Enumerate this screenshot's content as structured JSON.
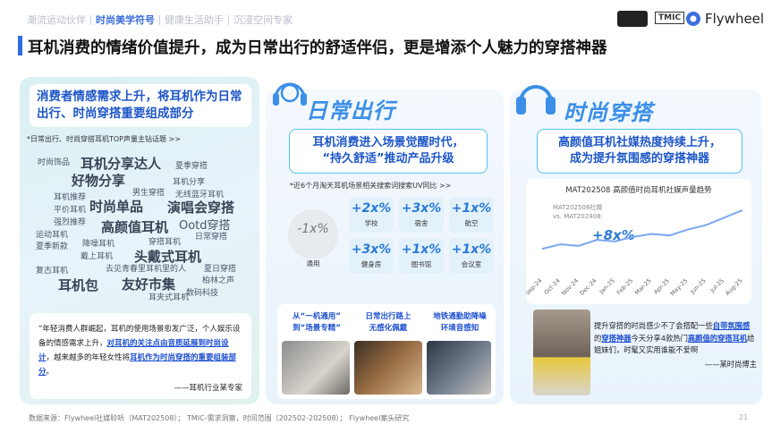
{
  "header": {
    "nav": [
      "潮流运动伙伴",
      "时尚美学符号",
      "健康生活助手",
      "沉浸空间专家"
    ],
    "active_nav": 1,
    "logos": [
      "TMIC",
      "Flywheel"
    ]
  },
  "title": "耳机消费的情绪价值提升，成为日常出行的舒适伴侣，更是增添个人魅力的穿搭神器",
  "left": {
    "heading": "消费者情感需求上升，将耳机作为日常出行、时尚穿搭重要组成部分",
    "note": "*日常出行、时尚穿搭耳机TOP声量主钻话题 >>",
    "words": [
      "时尚饰品",
      "耳机分享达人",
      "夏季穿搭",
      "好物分享",
      "耳机分享",
      "男生穿搭",
      "无线蓝牙耳机",
      "耳机推荐",
      "时尚单品",
      "演唱会穿搭",
      "平价耳机",
      "强烈推荐",
      "高颜值耳机",
      "Ootd穿搭",
      "运动耳机",
      "日常穿搭",
      "夏季新款",
      "降噪耳机",
      "穿搭耳机",
      "戴上耳机",
      "头戴式耳机",
      "复古耳机",
      "去见青春里耳机里的人",
      "夏日穿搭",
      "耳机包",
      "友好市集",
      "柏林之声",
      "耳夹式耳机",
      "数码科技"
    ],
    "quote": [
      {
        "text": "“年轻消费人群崛起，耳机的使用场景愈发广泛，个人娱乐设备的情感需求上升，",
        "highlight": false
      },
      {
        "text": "对耳机的关注点由音质延展到时尚设计",
        "highlight": true
      },
      {
        "text": "，越来越多的年轻女性将",
        "highlight": false
      },
      {
        "text": "耳机作为时尚穿搭的重要组装部分",
        "highlight": true
      },
      {
        "text": "。",
        "highlight": false
      }
    ],
    "quote_source": "——耳机行业某专家"
  },
  "middle": {
    "label": "日常出行",
    "callout": [
      "耳机消费进入场景觉醒时代，",
      "“持久舒适”推动产品升级"
    ],
    "note": "*近6个月淘天耳机场景相关搜索词搜索UV同比 >>",
    "overall": {
      "value": "-1x%",
      "label": "通用"
    },
    "scenes": [
      {
        "value": "+2x%",
        "label": "学校"
      },
      {
        "value": "+3x%",
        "label": "宿舍"
      },
      {
        "value": "+1x%",
        "label": "航空"
      },
      {
        "value": "+3x%",
        "label": "健身房"
      },
      {
        "value": "+1x%",
        "label": "图书馆"
      },
      {
        "value": "+1x%",
        "label": "会议室"
      }
    ],
    "features": [
      [
        "从“一机通用”",
        "到“场景专精”"
      ],
      [
        "日常出行路上",
        "无感化佩戴"
      ],
      [
        "地铁通勤助降噪",
        "环境音感知"
      ]
    ]
  },
  "chart_data": {
    "type": "line",
    "title": "MAT202508 高颜值时尚耳机社媒声量趋势",
    "annotation": [
      "MAT202508社媒",
      "vs. MAT202408:"
    ],
    "annotation_value": "+8x%",
    "categories": [
      "Sep-24",
      "Oct-24",
      "Nov-24",
      "Dec-24",
      "Jan-25",
      "Feb-25",
      "Mar-25",
      "Apr-25",
      "May-25",
      "Jun-25",
      "Jul-25",
      "Aug-25"
    ],
    "values": [
      18,
      21,
      20,
      24,
      23,
      26,
      28,
      27,
      31,
      34,
      39,
      44
    ],
    "ylim": [
      0,
      50
    ],
    "color": "#7aa7f0"
  },
  "right": {
    "label": "时尚穿搭",
    "callout": [
      "高颜值耳机社媒热度持续上升，",
      "成为提升氛围感的穿搭神器"
    ],
    "quote": [
      {
        "text": "提升穿搭的时尚感少不了会搭配一些",
        "highlight": false
      },
      {
        "text": "自带氛围感",
        "highlight": true
      },
      {
        "text": "的",
        "highlight": false
      },
      {
        "text": "穿搭神器",
        "highlight": true
      },
      {
        "text": "今天分享4款热门",
        "highlight": false
      },
      {
        "text": "高颜值的穿搭耳机",
        "highlight": true
      },
      {
        "text": "给姐妹们，时髦又实用谁能不爱啊",
        "highlight": false
      }
    ],
    "quote_source": "——某时尚博主"
  },
  "footer": {
    "source": "数据来源：Flywheel社媒聆听（MAT202508）； TMIC-需求洞察，时间范围（202502-202508）； Flywheel案头研究",
    "page": 21
  }
}
